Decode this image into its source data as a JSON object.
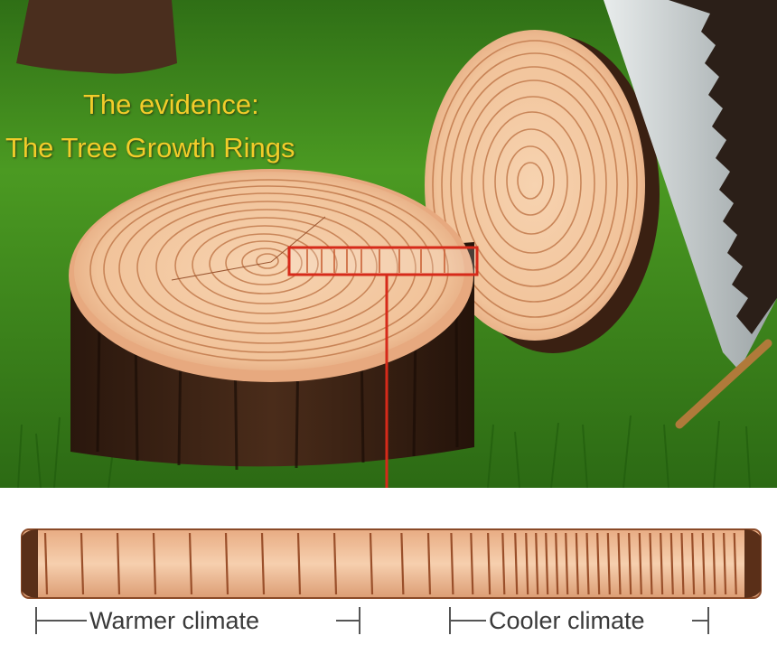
{
  "title": {
    "line1": "The evidence:",
    "line2": "The Tree Growth Rings"
  },
  "strip": {
    "left_label": "Warmer climate",
    "right_label": "Cooler climate"
  },
  "colors": {
    "grass": "#3f8a1f",
    "wood_light": "#f3c9a2",
    "wood_ring": "#b86a3c",
    "bark": "#3b2416",
    "title_text": "#f2cc2a",
    "highlight": "#d62a1a"
  }
}
